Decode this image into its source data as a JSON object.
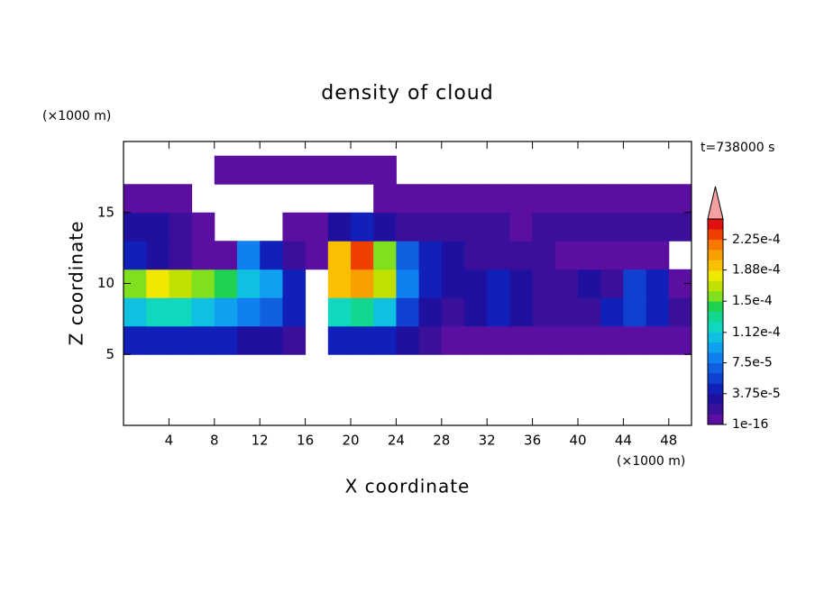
{
  "chart_data": {
    "type": "heatmap",
    "title": "density of cloud",
    "x_label": "X coordinate",
    "y_label": "Z coordinate",
    "x_unit": "(×1000 m)",
    "y_unit": "(×1000 m)",
    "annotation": "t=738000 s",
    "xlim": [
      0,
      50
    ],
    "ylim": [
      0,
      20
    ],
    "xticks": [
      4,
      8,
      12,
      16,
      20,
      24,
      28,
      32,
      36,
      40,
      44,
      48
    ],
    "yticks": [
      5,
      10,
      15
    ],
    "x_bins": [
      0,
      2,
      4,
      6,
      8,
      10,
      12,
      14,
      16,
      18,
      20,
      22,
      24,
      26,
      28,
      30,
      32,
      34,
      36,
      38,
      40,
      42,
      44,
      46,
      48,
      50
    ],
    "z_bins": [
      5,
      7,
      9,
      11,
      13,
      15,
      17,
      19
    ],
    "values": [
      [
        4e-05,
        4e-05,
        4e-05,
        4e-05,
        4e-05,
        3e-05,
        3e-05,
        2e-05,
        null,
        4e-05,
        4e-05,
        4e-05,
        3e-05,
        2e-05,
        1e-05,
        1e-05,
        1e-05,
        1e-05,
        1e-05,
        1e-05,
        1e-05,
        1e-05,
        1e-05,
        1e-05,
        1e-05
      ],
      [
        0.00011,
        0.00012,
        0.00012,
        0.00011,
        0.0001,
        8e-05,
        7e-05,
        4e-05,
        null,
        0.00012,
        0.00013,
        0.00011,
        6e-05,
        3e-05,
        2e-05,
        3e-05,
        5e-05,
        3e-05,
        2e-05,
        2e-05,
        2e-05,
        4e-05,
        6e-05,
        5e-05,
        2e-05
      ],
      [
        0.00016,
        0.00018,
        0.00017,
        0.00016,
        0.00014,
        0.00011,
        9e-05,
        5e-05,
        null,
        0.00019,
        0.00021,
        0.00017,
        8e-05,
        4e-05,
        3e-05,
        3e-05,
        4e-05,
        3e-05,
        2e-05,
        2e-05,
        3e-05,
        2e-05,
        6e-05,
        4e-05,
        1e-05
      ],
      [
        4e-05,
        3e-05,
        2e-05,
        1e-05,
        5e-06,
        8e-05,
        5e-05,
        2e-05,
        1e-05,
        0.0002,
        0.00023,
        0.00016,
        7e-05,
        4e-05,
        3e-05,
        2e-05,
        2e-05,
        2e-05,
        2e-05,
        1e-05,
        1e-05,
        1e-05,
        1e-05,
        1e-05,
        null
      ],
      [
        3e-05,
        3e-05,
        2e-05,
        1e-05,
        null,
        null,
        null,
        5e-06,
        1e-05,
        3e-05,
        4e-05,
        3e-05,
        2e-05,
        2e-05,
        2e-05,
        2e-05,
        2e-05,
        1e-05,
        2e-05,
        2e-05,
        2e-05,
        2e-05,
        2e-05,
        2e-05,
        2e-05
      ],
      [
        1e-05,
        1e-05,
        5e-06,
        null,
        null,
        null,
        null,
        null,
        null,
        null,
        null,
        5e-06,
        1e-05,
        1e-05,
        1e-05,
        5e-06,
        5e-06,
        5e-06,
        5e-06,
        5e-06,
        5e-06,
        5e-06,
        5e-06,
        5e-06,
        5e-06
      ],
      [
        null,
        null,
        null,
        null,
        5e-06,
        5e-06,
        5e-06,
        5e-06,
        5e-06,
        5e-06,
        5e-06,
        5e-06,
        null,
        null,
        null,
        null,
        null,
        null,
        null,
        null,
        null,
        null,
        null,
        null,
        null
      ]
    ],
    "clim": [
      1e-16,
      0.00025
    ],
    "colors": [
      "#5a0fa0",
      "#3a0f9a",
      "#2010a0",
      "#1020b8",
      "#1040d0",
      "#1060e0",
      "#1080f0",
      "#10a0f0",
      "#10c0e0",
      "#10d8c0",
      "#10d890",
      "#20d050",
      "#80e020",
      "#c0e000",
      "#f0e800",
      "#f8c000",
      "#f8a000",
      "#f87800",
      "#f04000",
      "#e01010"
    ],
    "over_color": "#f4a0a0",
    "cticks": [
      {
        "value": 1e-16,
        "label": "1e-16"
      },
      {
        "value": 3.75e-05,
        "label": "3.75e-5"
      },
      {
        "value": 7.5e-05,
        "label": "7.5e-5"
      },
      {
        "value": 0.000112,
        "label": "1.12e-4"
      },
      {
        "value": 0.00015,
        "label": "1.5e-4"
      },
      {
        "value": 0.000188,
        "label": "1.88e-4"
      },
      {
        "value": 0.000225,
        "label": "2.25e-4"
      }
    ]
  }
}
